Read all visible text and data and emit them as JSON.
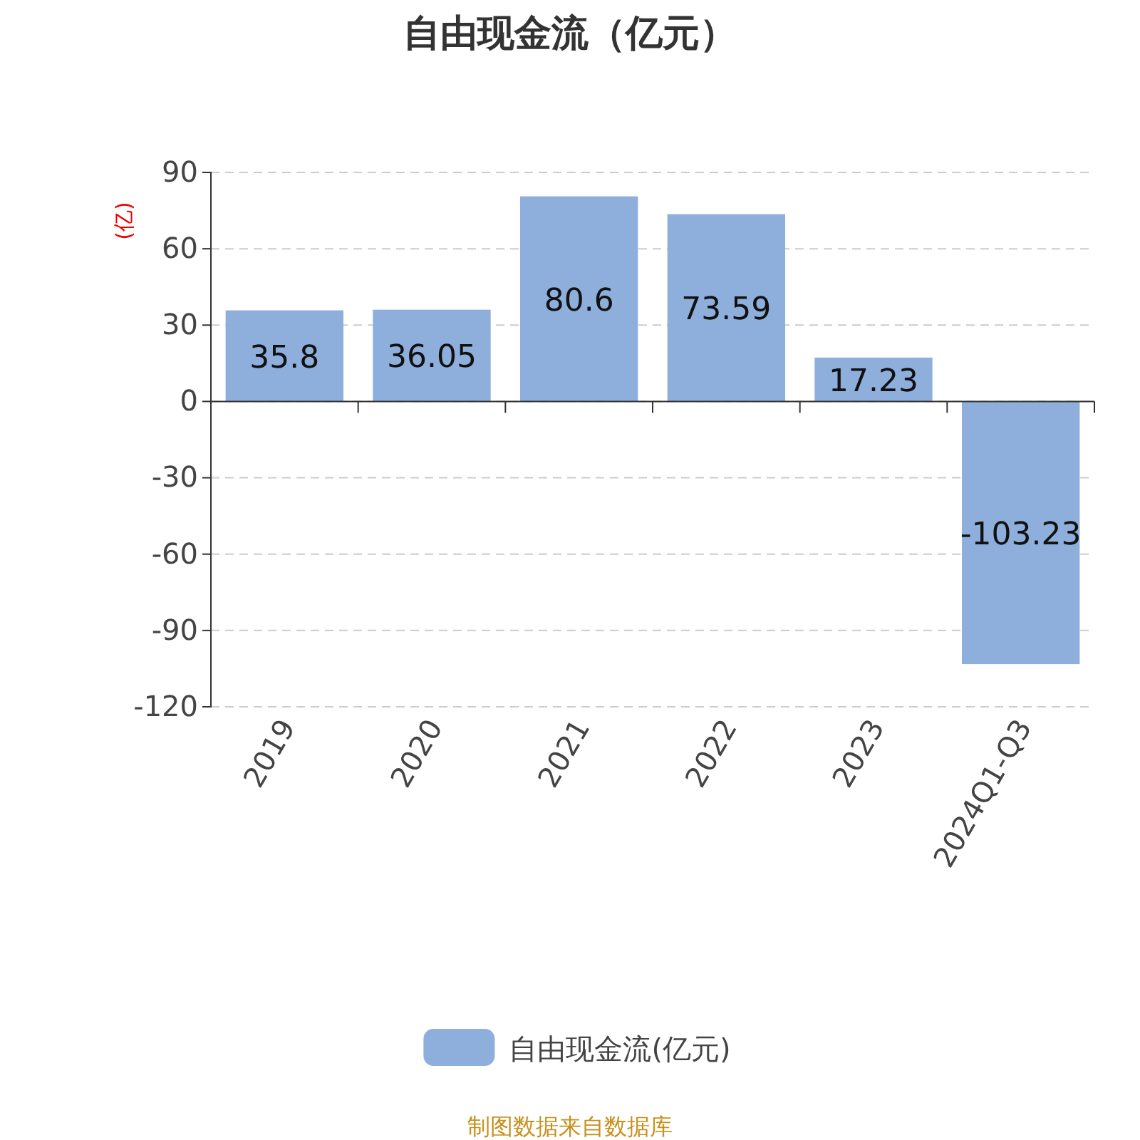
{
  "chart_data": {
    "type": "bar",
    "title": "自由现金流（亿元）",
    "ylabel": "(亿)",
    "categories": [
      "2019",
      "2020",
      "2021",
      "2022",
      "2023",
      "2024Q1-Q3"
    ],
    "series": [
      {
        "name": "自由现金流(亿元)",
        "color": "#8eaedb",
        "values": [
          35.8,
          36.05,
          80.6,
          73.59,
          17.23,
          -103.23
        ]
      }
    ],
    "ylim": [
      -120,
      90
    ],
    "yticks": [
      -120,
      -90,
      -60,
      -30,
      0,
      30,
      60,
      90
    ],
    "grid": "y",
    "legend": "bottom",
    "data_labels": true,
    "annotations": [
      "制图数据来自数据库"
    ]
  }
}
